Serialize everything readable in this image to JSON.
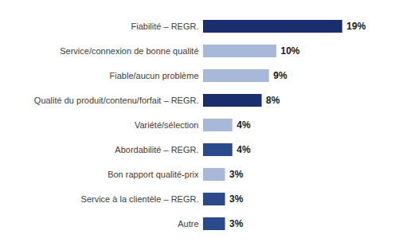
{
  "chart_data": {
    "type": "bar",
    "orientation": "horizontal",
    "categories": [
      "Autre",
      "Service à la clientèle – REGR.",
      "Bon rapport qualité-prix",
      "Abordabilité – REGR.",
      "Variété/sélection",
      "Qualité du produit/contenu/forfait – REGR.",
      "Fiable/aucun problème",
      "Service/connexion de bonne qualité",
      "Fiabilité – REGR."
    ],
    "values": [
      3,
      3,
      3,
      4,
      4,
      8,
      9,
      10,
      19
    ],
    "value_labels": [
      "3%",
      "3%",
      "3%",
      "4%",
      "4%",
      "8%",
      "9%",
      "10%",
      "19%"
    ],
    "colors": [
      "#2B4A8B",
      "#2B4A8B",
      "#A8B8D8",
      "#2B4A8B",
      "#A8B8D8",
      "#1A2E6E",
      "#A8B8D8",
      "#A8B8D8",
      "#1A2E6E"
    ],
    "xlim": [
      0,
      25
    ],
    "data_labels": true,
    "tick_labels": "y",
    "grid": false
  }
}
